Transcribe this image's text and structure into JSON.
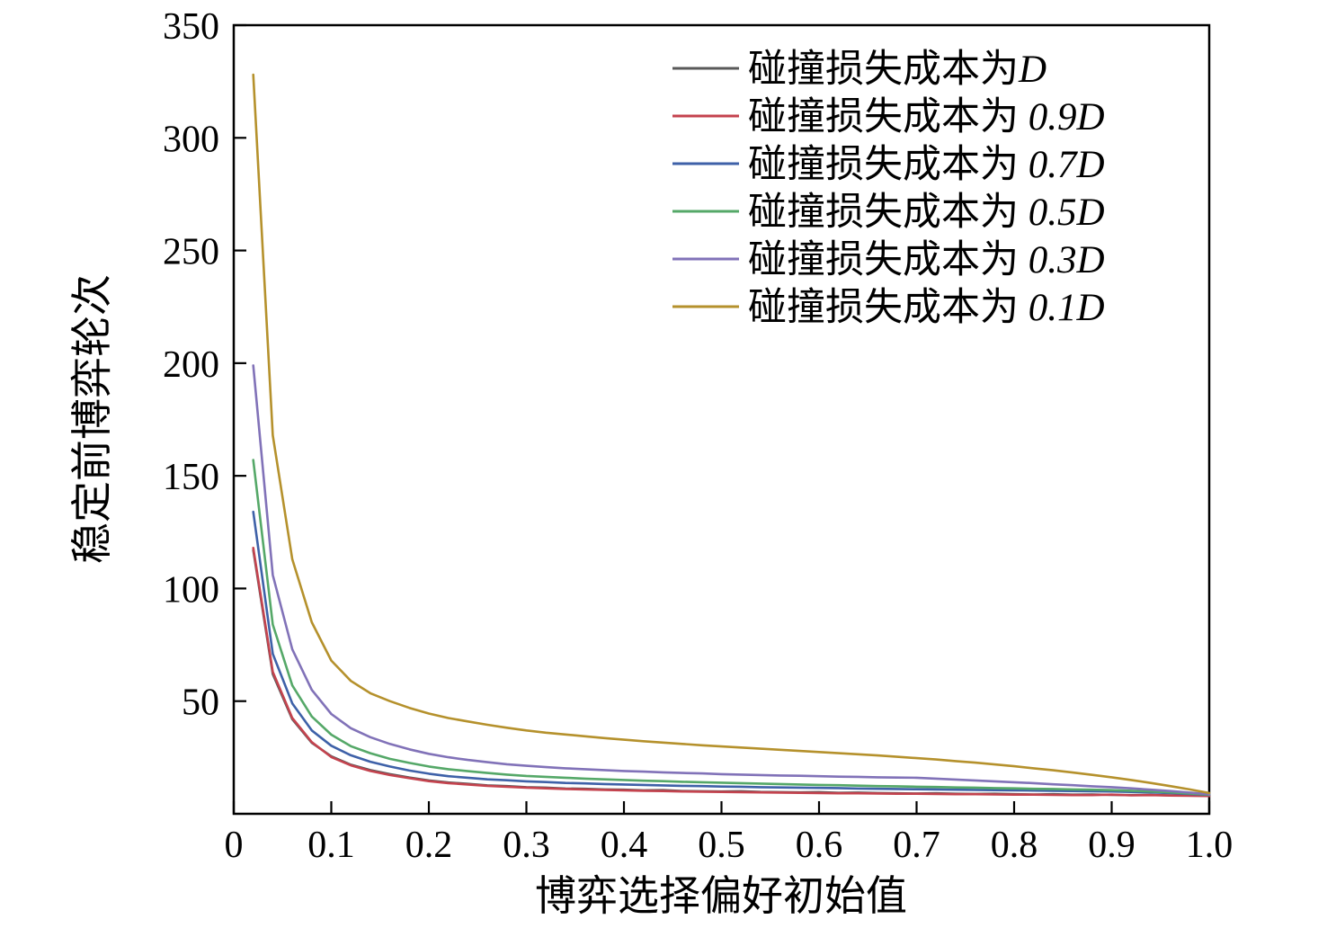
{
  "chart_data": {
    "type": "line",
    "title": "",
    "xlabel": "博弈选择偏好初始值",
    "ylabel": "稳定前博弈轮次",
    "xlim": [
      0,
      1.0
    ],
    "ylim": [
      0,
      350
    ],
    "grid": false,
    "legend_position": "upper right",
    "x_ticks": [
      0,
      0.1,
      0.2,
      0.3,
      0.4,
      0.5,
      0.6,
      0.7,
      0.8,
      0.9,
      1.0
    ],
    "x_tick_labels": [
      "0",
      "0.1",
      "0.2",
      "0.3",
      "0.4",
      "0.5",
      "0.6",
      "0.7",
      "0.8",
      "0.9",
      "1.0"
    ],
    "y_ticks": [
      50,
      100,
      150,
      200,
      250,
      300,
      350
    ],
    "y_tick_labels": [
      "50",
      "100",
      "150",
      "200",
      "250",
      "300",
      "350"
    ],
    "x": [
      0.02,
      0.04,
      0.06,
      0.08,
      0.1,
      0.12,
      0.14,
      0.16,
      0.18,
      0.2,
      0.22,
      0.24,
      0.26,
      0.28,
      0.3,
      0.32,
      0.34,
      0.36,
      0.38,
      0.4,
      0.42,
      0.44,
      0.46,
      0.48,
      0.5,
      0.52,
      0.54,
      0.56,
      0.58,
      0.6,
      0.62,
      0.64,
      0.66,
      0.68,
      0.7,
      0.72,
      0.74,
      0.76,
      0.78,
      0.8,
      0.82,
      0.84,
      0.86,
      0.88,
      0.9,
      0.92,
      0.94,
      0.96,
      0.98,
      1.0
    ],
    "series": [
      {
        "label": "碰撞损失成本为D",
        "prefix": "碰撞损失成本为",
        "math": "D",
        "color": "#595959",
        "values": [
          117,
          62,
          42,
          31.5,
          25.5,
          21.8,
          19.4,
          17.6,
          16.1,
          14.8,
          13.9,
          13.3,
          12.6,
          12.3,
          11.8,
          11.6,
          11.2,
          11.1,
          10.8,
          10.7,
          10.4,
          10.5,
          10.1,
          10.0,
          9.9,
          10.0,
          9.7,
          9.6,
          9.5,
          9.6,
          9.3,
          9.4,
          9.2,
          9.1,
          9.0,
          9.1,
          8.9,
          8.8,
          8.9,
          8.7,
          8.6,
          8.7,
          8.5,
          8.6,
          8.4,
          8.3,
          8.4,
          8.2,
          8.1,
          8.0
        ]
      },
      {
        "label": "碰撞损失成本为 0.9D",
        "prefix": "碰撞损失成本为 ",
        "math": "0.9D",
        "color": "#c4434e",
        "values": [
          118,
          63,
          42.5,
          31.8,
          25.2,
          21.5,
          19.0,
          17.2,
          15.8,
          14.5,
          13.6,
          13.0,
          12.4,
          12.0,
          11.6,
          11.3,
          11.0,
          10.8,
          10.6,
          10.4,
          10.2,
          10.1,
          9.9,
          9.8,
          9.7,
          9.6,
          9.5,
          9.4,
          9.3,
          9.2,
          9.1,
          9.1,
          9.0,
          8.9,
          8.9,
          8.8,
          8.7,
          8.7,
          8.6,
          8.5,
          8.5,
          8.4,
          8.3,
          8.3,
          8.5,
          8.2,
          8.3,
          8.1,
          8.0,
          7.9
        ]
      },
      {
        "label": "碰撞损失成本为 0.7D",
        "prefix": "碰撞损失成本为 ",
        "math": "0.7D",
        "color": "#3e61a8",
        "values": [
          134,
          71,
          49,
          37,
          30.2,
          26.0,
          23.1,
          21.0,
          19.2,
          17.8,
          16.7,
          16.0,
          15.3,
          14.9,
          14.4,
          14.1,
          13.7,
          13.5,
          13.2,
          13.0,
          12.8,
          12.6,
          12.4,
          12.3,
          12.1,
          12.0,
          11.8,
          11.7,
          11.6,
          11.5,
          11.4,
          11.2,
          11.1,
          11.0,
          10.9,
          10.8,
          10.7,
          10.6,
          10.5,
          10.4,
          10.3,
          10.2,
          10.1,
          10.0,
          9.9,
          9.7,
          9.5,
          9.2,
          8.8,
          8.4
        ]
      },
      {
        "label": "碰撞损失成本为 0.5D",
        "prefix": "碰撞损失成本为 ",
        "math": "0.5D",
        "color": "#55a868",
        "values": [
          157,
          84,
          57,
          43.2,
          35.1,
          30.0,
          26.9,
          24.4,
          22.6,
          21.0,
          19.8,
          18.9,
          18.1,
          17.4,
          16.8,
          16.4,
          16.0,
          15.6,
          15.3,
          15.0,
          14.7,
          14.5,
          14.2,
          14.0,
          13.8,
          13.6,
          13.4,
          13.2,
          13.0,
          12.8,
          12.7,
          12.5,
          12.3,
          12.2,
          12.0,
          11.9,
          11.7,
          11.6,
          11.4,
          11.3,
          11.1,
          11.0,
          10.8,
          10.7,
          10.5,
          10.2,
          9.9,
          9.5,
          9.0,
          8.5
        ]
      },
      {
        "label": "碰撞损失成本为 0.3D",
        "prefix": "碰撞损失成本为 ",
        "math": "0.3D",
        "color": "#8172b8",
        "values": [
          199,
          106,
          73,
          55,
          44.3,
          38.0,
          34.0,
          31.0,
          28.6,
          26.6,
          25.1,
          23.9,
          22.9,
          22.0,
          21.3,
          20.7,
          20.2,
          19.8,
          19.4,
          19.0,
          18.7,
          18.4,
          18.1,
          17.9,
          17.6,
          17.4,
          17.2,
          17.0,
          16.9,
          16.7,
          16.5,
          16.4,
          16.2,
          16.1,
          16.0,
          15.6,
          15.2,
          14.8,
          14.4,
          14.0,
          13.6,
          13.1,
          12.7,
          12.2,
          11.8,
          11.3,
          10.7,
          10.1,
          9.4,
          8.7
        ]
      },
      {
        "label": "碰撞损失成本为 0.1D",
        "prefix": "碰撞损失成本为 ",
        "math": "0.1D",
        "color": "#b5912c",
        "values": [
          328,
          168,
          113,
          85,
          68,
          59,
          53.5,
          50,
          47,
          44.5,
          42.5,
          41,
          39.5,
          38.2,
          37,
          36,
          35.2,
          34.4,
          33.6,
          32.9,
          32.2,
          31.6,
          31.0,
          30.4,
          29.9,
          29.4,
          28.9,
          28.4,
          27.9,
          27.4,
          26.9,
          26.4,
          25.9,
          25.3,
          24.7,
          24.1,
          23.4,
          22.7,
          21.9,
          21.1,
          20.2,
          19.3,
          18.3,
          17.3,
          16.2,
          15.0,
          13.7,
          12.3,
          10.8,
          9.2
        ]
      }
    ],
    "axis_color": "#000000",
    "background_color": "#ffffff"
  }
}
